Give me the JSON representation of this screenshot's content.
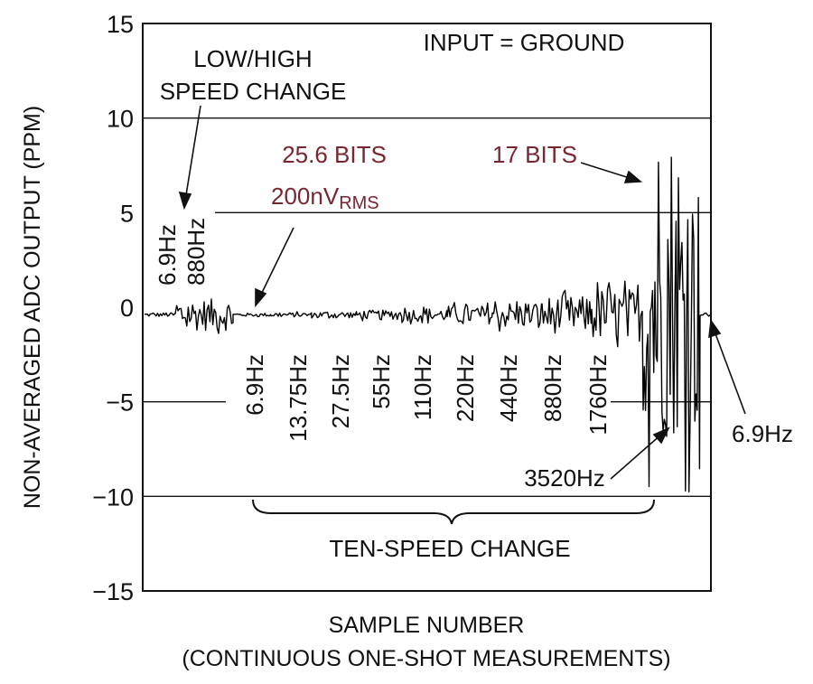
{
  "chart_data": {
    "type": "line",
    "ylabel": "NON-AVERAGED ADC OUTPUT (PPM)",
    "xlabel": "SAMPLE NUMBER",
    "xlabel_sub": "(CONTINUOUS ONE-SHOT MEASUREMENTS)",
    "ylim": [
      -15,
      15
    ],
    "yticks": [
      "15",
      "10",
      "5",
      "0",
      "-5",
      "-10",
      "-15"
    ],
    "grid_values": [
      10,
      5,
      -5,
      -10
    ],
    "series_color": "#000000",
    "annotation_color": "#7a2630",
    "segments": [
      {
        "label": "6.9Hz",
        "center": -0.4,
        "amplitude": 0.15
      },
      {
        "label": "880Hz",
        "center": -0.4,
        "amplitude": 1.2
      },
      {
        "label": "6.9Hz",
        "center": -0.4,
        "amplitude": 0.12
      },
      {
        "label": "13.75Hz",
        "center": -0.4,
        "amplitude": 0.17
      },
      {
        "label": "27.5Hz",
        "center": -0.4,
        "amplitude": 0.25
      },
      {
        "label": "55Hz",
        "center": -0.4,
        "amplitude": 0.35
      },
      {
        "label": "110Hz",
        "center": -0.4,
        "amplitude": 0.5
      },
      {
        "label": "220Hz",
        "center": -0.4,
        "amplitude": 0.7
      },
      {
        "label": "440Hz",
        "center": -0.4,
        "amplitude": 1.0
      },
      {
        "label": "880Hz",
        "center": -0.4,
        "amplitude": 1.4
      },
      {
        "label": "1760Hz",
        "center": -0.4,
        "amplitude": 2.0
      },
      {
        "label": "3520Hz",
        "center": 0.0,
        "amplitude": 10.0
      },
      {
        "label": "6.9Hz",
        "center": -0.4,
        "amplitude": 0.15
      }
    ],
    "annotations": {
      "input": "INPUT = GROUND",
      "lowhigh_line1": "LOW/HIGH",
      "lowhigh_line2": "SPEED CHANGE",
      "bits256": "25.6 BITS",
      "nv_value": "200nV",
      "nv_sub": "RMS",
      "bits17": "17 BITS",
      "rot_69": "6.9Hz",
      "rot_880": "880Hz",
      "label_3520": "3520Hz",
      "label_end": "6.9Hz",
      "tenspeed": "TEN-SPEED CHANGE",
      "freq_labels": [
        "6.9Hz",
        "13.75Hz",
        "27.5Hz",
        "55Hz",
        "110Hz",
        "220Hz",
        "440Hz",
        "880Hz",
        "1760Hz"
      ]
    }
  }
}
